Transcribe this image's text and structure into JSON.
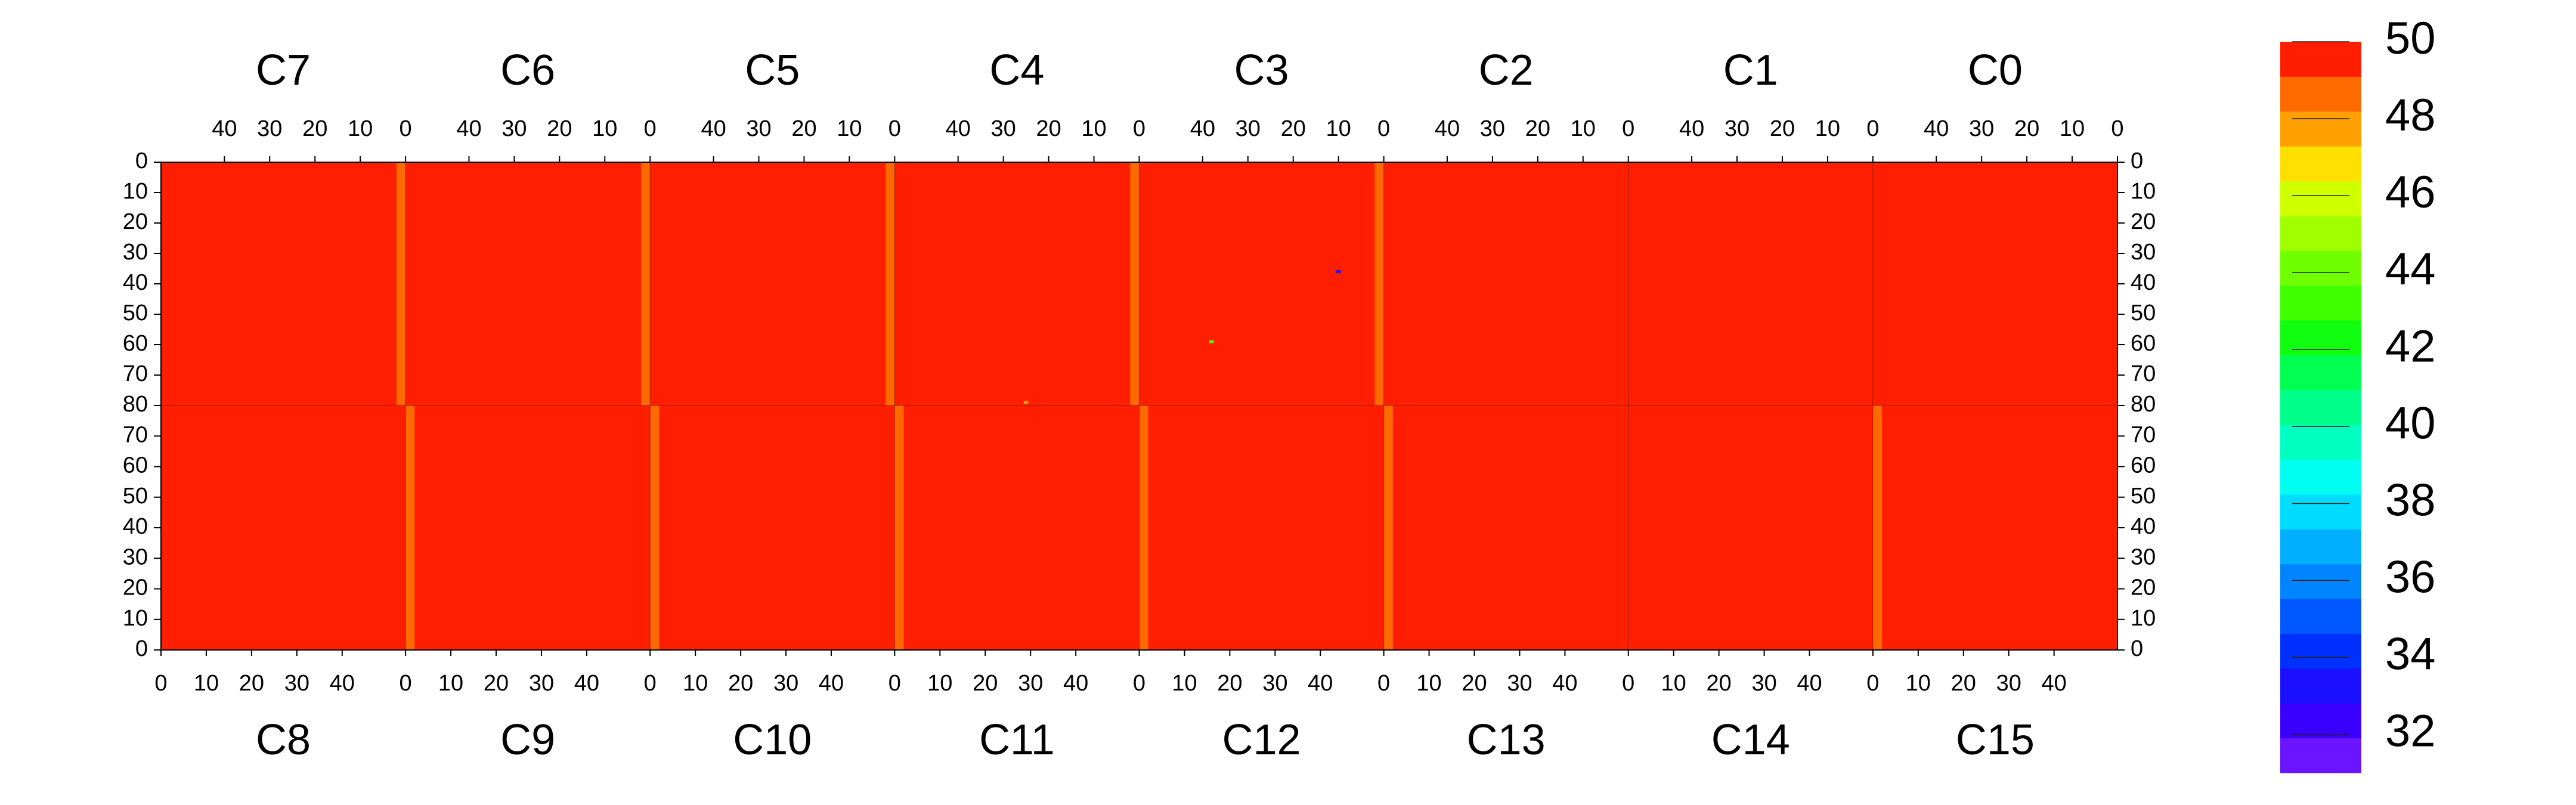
{
  "chart_data": {
    "type": "heatmap",
    "top_panels": [
      "C7",
      "C6",
      "C5",
      "C4",
      "C3",
      "C2",
      "C1",
      "C0"
    ],
    "bottom_panels": [
      "C8",
      "C9",
      "C10",
      "C11",
      "C12",
      "C13",
      "C14",
      "C15"
    ],
    "xlim": [
      0,
      54
    ],
    "xticks": [
      0,
      10,
      20,
      30,
      40
    ],
    "ylim": [
      0,
      80
    ],
    "yticks": [
      0,
      10,
      20,
      30,
      40,
      50,
      60,
      70,
      80
    ],
    "zlim": [
      31,
      50
    ],
    "zticks": [
      32,
      34,
      36,
      38,
      40,
      42,
      44,
      46,
      48,
      50
    ],
    "colors": [
      "#6a14ff",
      "#3a00ff",
      "#1a10ff",
      "#0030ff",
      "#0058ff",
      "#0084ff",
      "#00b0ff",
      "#00dcff",
      "#00fff0",
      "#00ffc0",
      "#00ff8a",
      "#00ff50",
      "#10ff10",
      "#40ff00",
      "#70ff00",
      "#a0ff00",
      "#d0ff00",
      "#ffe000",
      "#ffa000",
      "#ff6a00",
      "#ff1e00"
    ],
    "base_value": 50,
    "top_edge_values": [
      48.6,
      48.6,
      48.6,
      48.6,
      48.2,
      49.5,
      49.6,
      49.8
    ],
    "bottom_edge_values": [
      50,
      48.6,
      48.6,
      48.6,
      48.5,
      48.4,
      49.5,
      49.0
    ],
    "top_points": [
      {
        "col": 4,
        "x": 10,
        "y": 36,
        "value": 33
      },
      {
        "col": 4,
        "x": 38,
        "y": 59,
        "value": 43
      },
      {
        "col": 3,
        "x": 25,
        "y": 79,
        "value": 48
      }
    ],
    "bottom_points": []
  }
}
